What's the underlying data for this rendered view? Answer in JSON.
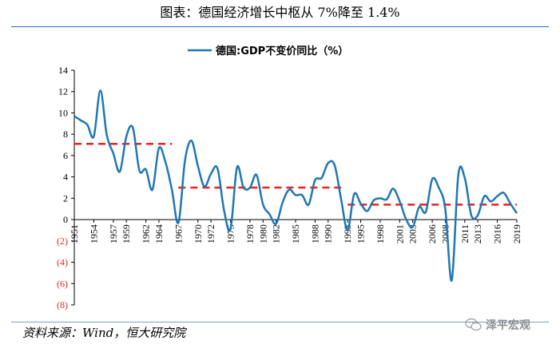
{
  "header": {
    "title": "图表：德国经济增长中枢从 7%降至 1.4%"
  },
  "footer": {
    "source": "资料来源：Wind，恒大研究院",
    "watermark": "泽平宏观"
  },
  "colors": {
    "series": "#1f77b4",
    "trend": "#e8231f",
    "negative_tick": "#e8231f",
    "rule": "#1a6fb3"
  },
  "chart_data": {
    "type": "line",
    "title": "",
    "legend": {
      "label": "德国:GDP不变价同比（%）",
      "position": "top-center"
    },
    "xlabel": "",
    "ylabel": "",
    "ylim": [
      -8,
      14
    ],
    "yticks": [
      14,
      12,
      10,
      8,
      6,
      4,
      2,
      0,
      -2,
      -4,
      -6,
      -8
    ],
    "ytick_labels": [
      "14",
      "12",
      "10",
      "8",
      "6",
      "4",
      "2",
      "0",
      "(2)",
      "(4)",
      "(6)",
      "(8)"
    ],
    "xlim": [
      1951,
      2019
    ],
    "xtick_labels": [
      "1951",
      "1954",
      "1957",
      "1959",
      "1962",
      "1964",
      "1967",
      "1970",
      "1972",
      "1975",
      "1978",
      "1980",
      "1982",
      "1985",
      "1988",
      "1990",
      "1993",
      "1995",
      "1998",
      "2001",
      "2003",
      "2006",
      "2008",
      "2011",
      "2013",
      "2016",
      "2019"
    ],
    "grid": false,
    "series": [
      {
        "name": "德国:GDP不变价同比（%）",
        "x": [
          1951,
          1952,
          1953,
          1954,
          1955,
          1956,
          1957,
          1958,
          1959,
          1960,
          1961,
          1962,
          1963,
          1964,
          1965,
          1966,
          1967,
          1968,
          1969,
          1970,
          1971,
          1972,
          1973,
          1974,
          1975,
          1976,
          1977,
          1978,
          1979,
          1980,
          1981,
          1982,
          1983,
          1984,
          1985,
          1986,
          1987,
          1988,
          1989,
          1990,
          1991,
          1992,
          1993,
          1994,
          1995,
          1996,
          1997,
          1998,
          1999,
          2000,
          2001,
          2002,
          2003,
          2004,
          2005,
          2006,
          2007,
          2008,
          2009,
          2010,
          2011,
          2012,
          2013,
          2014,
          2015,
          2016,
          2017,
          2018,
          2019
        ],
        "values": [
          9.7,
          9.3,
          8.9,
          7.8,
          12.1,
          7.9,
          6.2,
          4.5,
          7.8,
          8.6,
          4.6,
          4.7,
          2.8,
          6.7,
          5.4,
          2.8,
          -0.3,
          5.5,
          7.4,
          5.0,
          3.1,
          4.3,
          4.8,
          0.9,
          -0.9,
          4.9,
          3.0,
          3.0,
          4.2,
          1.4,
          0.5,
          -0.4,
          1.6,
          2.8,
          2.3,
          2.3,
          1.4,
          3.7,
          3.9,
          5.3,
          5.1,
          1.9,
          -1.0,
          2.4,
          1.5,
          0.8,
          1.8,
          2.0,
          1.9,
          2.9,
          1.7,
          0.0,
          -0.7,
          1.2,
          0.7,
          3.8,
          3.0,
          1.0,
          -5.7,
          4.2,
          3.9,
          0.4,
          0.4,
          2.2,
          1.7,
          2.2,
          2.5,
          1.5,
          0.6
        ]
      }
    ],
    "trend_lines": [
      {
        "x": [
          1951,
          1966
        ],
        "value": 7.1
      },
      {
        "x": [
          1967,
          1992
        ],
        "value": 3.0
      },
      {
        "x": [
          1993,
          2019
        ],
        "value": 1.4
      }
    ]
  }
}
